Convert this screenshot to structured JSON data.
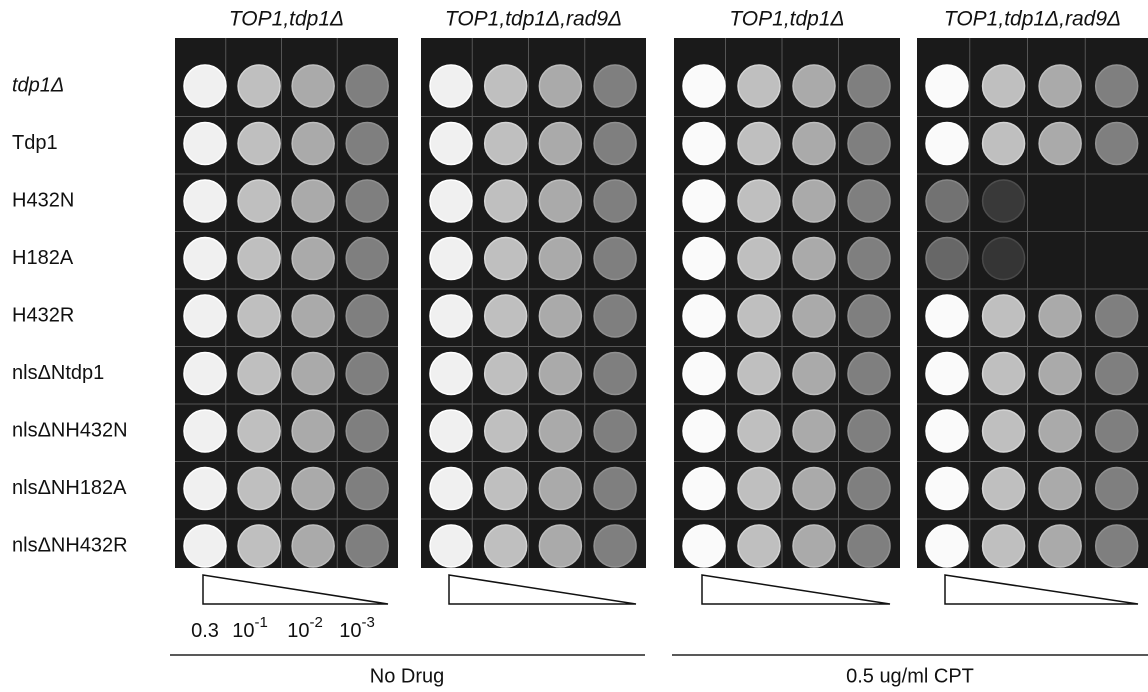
{
  "panel_headers": [
    "TOP1,tdp1Δ",
    "TOP1,tdp1Δ,rad9Δ",
    "TOP1,tdp1Δ",
    "TOP1,tdp1Δ,rad9Δ"
  ],
  "row_labels": [
    "tdp1Δ",
    "Tdp1",
    "H432N",
    "H182A",
    "H432R",
    "nlsΔNtdp1",
    "nlsΔNH432N",
    "nlsΔNH182A",
    "nlsΔNH432R"
  ],
  "dilutions": [
    {
      "base": "0.3"
    },
    {
      "base": "10",
      "exponent": "-1"
    },
    {
      "base": "10",
      "exponent": "-2"
    },
    {
      "base": "10",
      "exponent": "-3"
    }
  ],
  "conditions": [
    "No Drug",
    "0.5 ug/ml CPT"
  ]
}
